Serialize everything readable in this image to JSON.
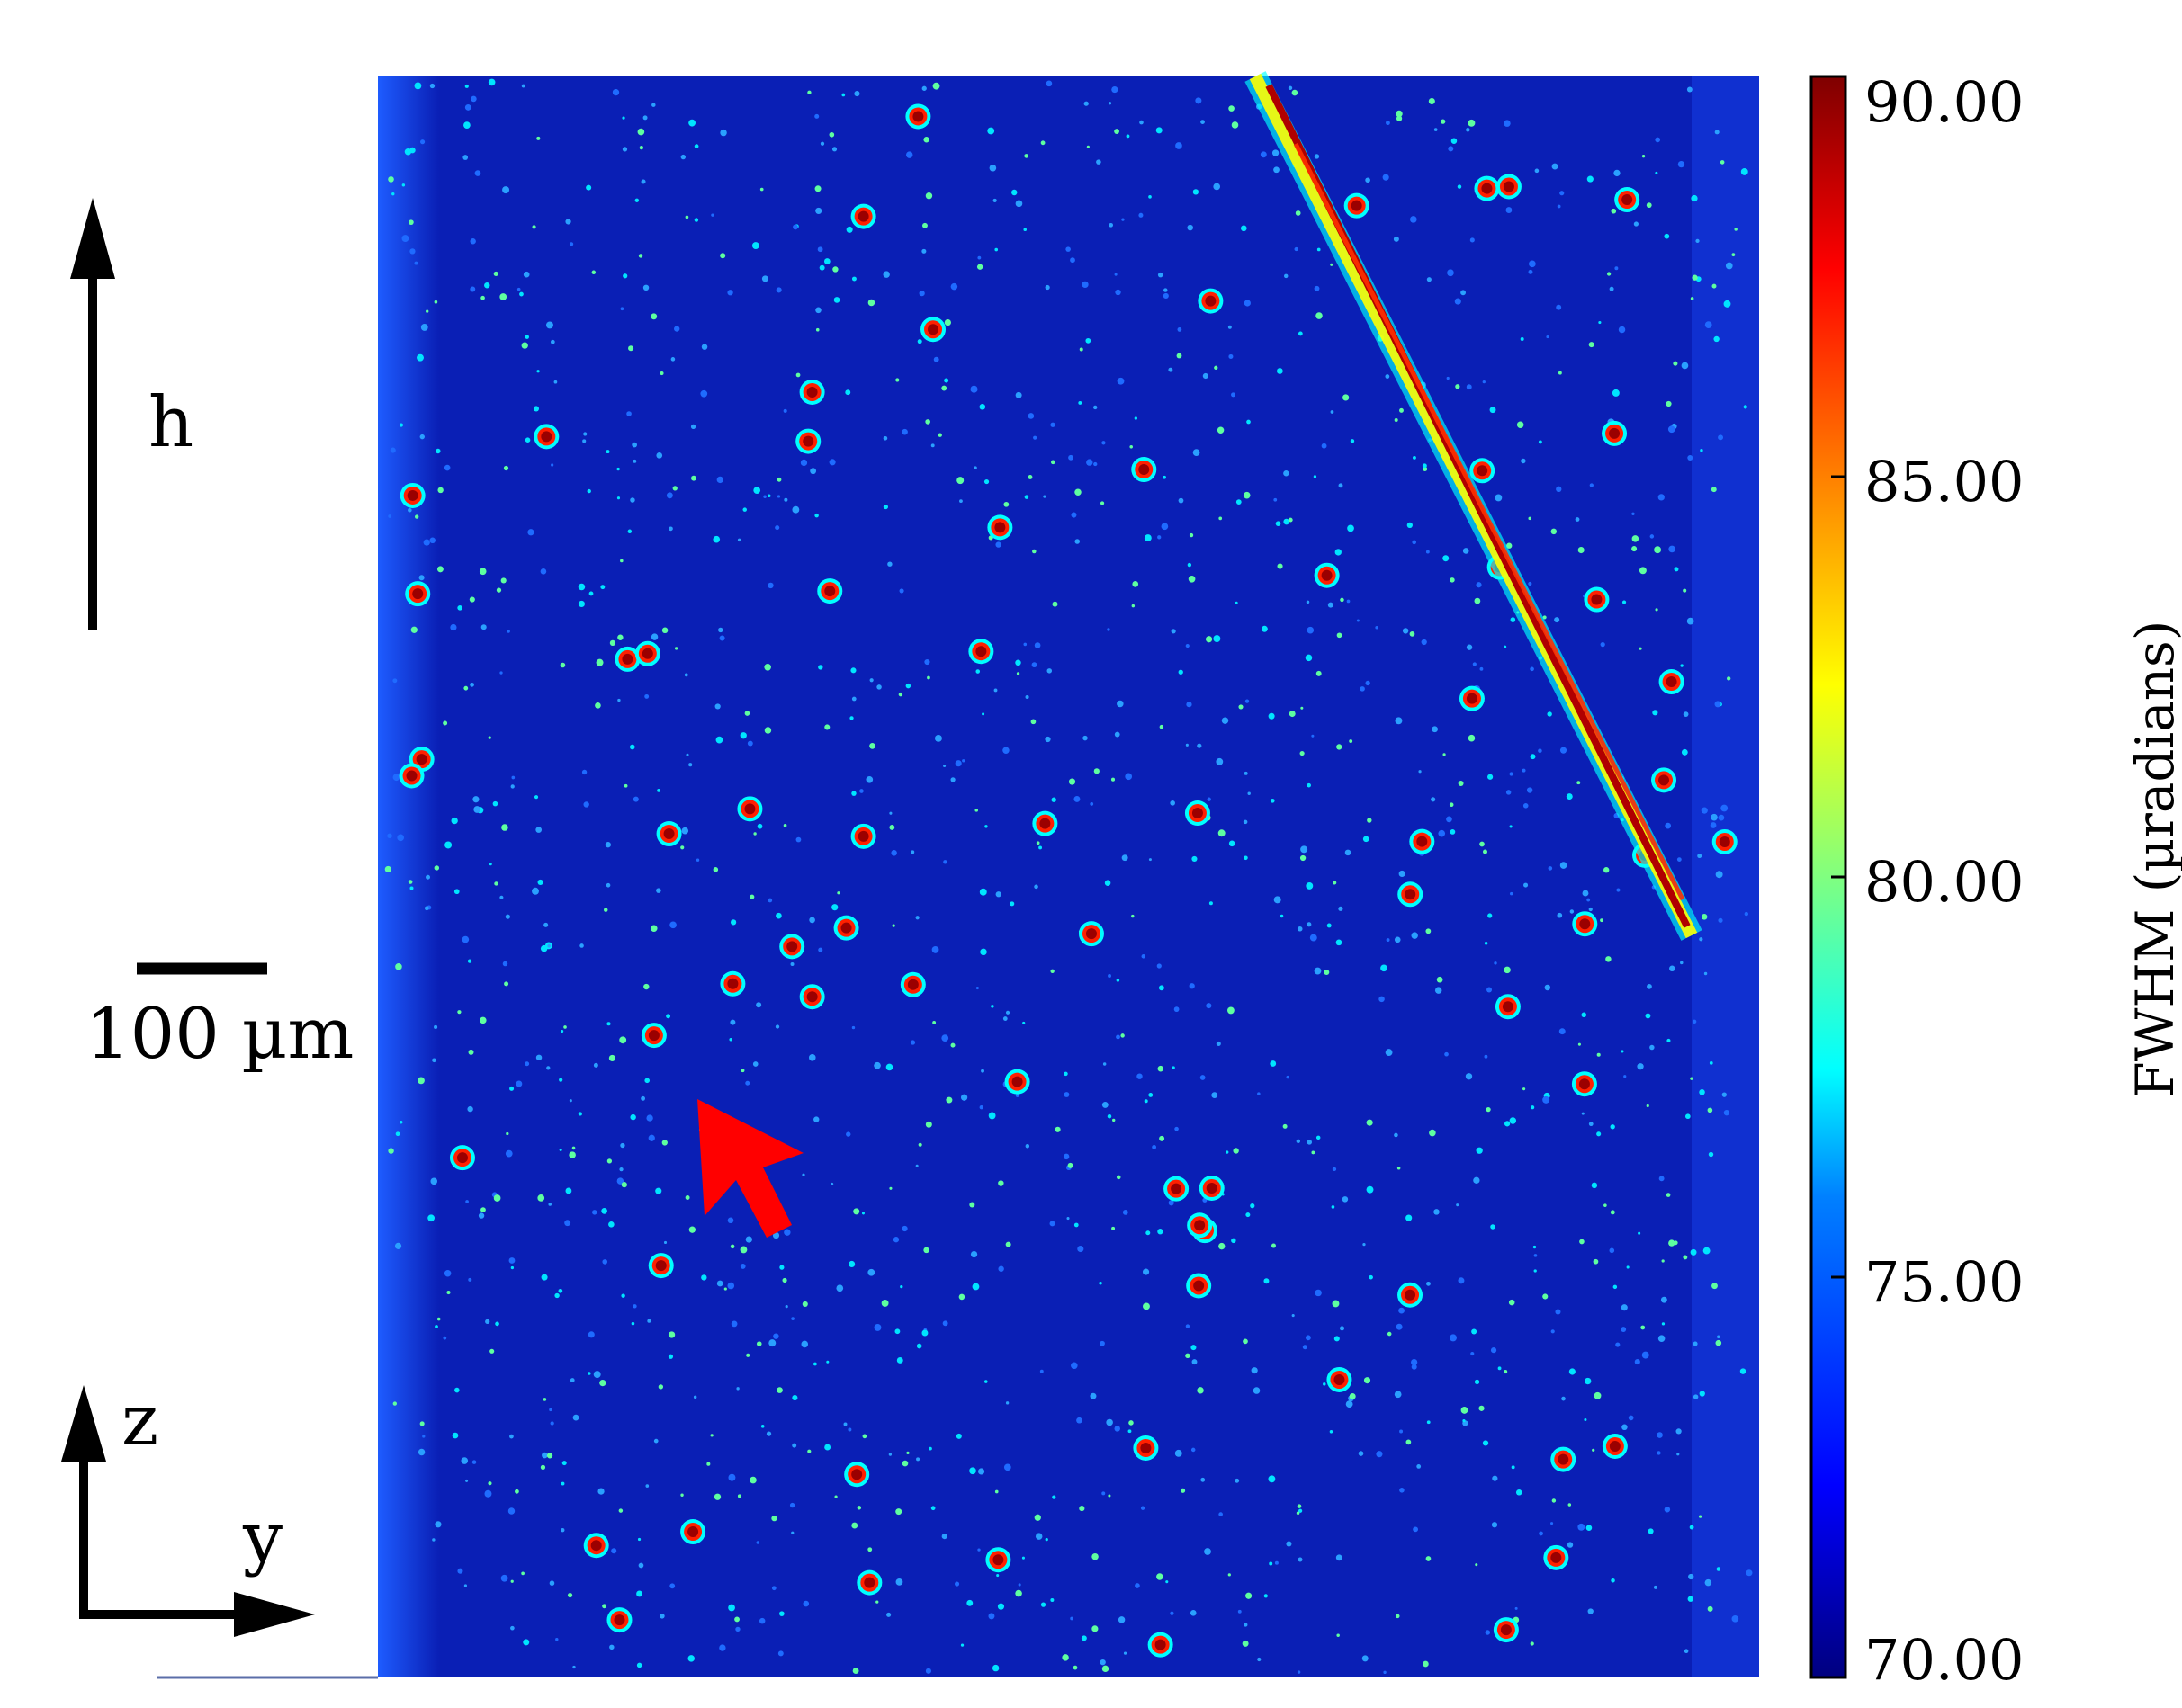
{
  "figure": {
    "direction_label": "h",
    "scalebar_label": "100 µm",
    "axis_z_label": "z",
    "axis_y_label": "y"
  },
  "colorbar": {
    "title": "FWHM (µradians)",
    "min": 70.0,
    "max": 90.0,
    "ticks": [
      "90.00",
      "85.00",
      "80.00",
      "75.00",
      "70.00"
    ],
    "tick_values": [
      90,
      85,
      80,
      75,
      70
    ],
    "colormap": [
      "#00007f",
      "#0000ff",
      "#0080ff",
      "#00ffff",
      "#80ff80",
      "#ffff00",
      "#ff8000",
      "#ff0000",
      "#7f0000"
    ]
  },
  "colors": {
    "background_map": "#0a1fb5",
    "arrow": "#ff0000",
    "ink": "#000000"
  }
}
